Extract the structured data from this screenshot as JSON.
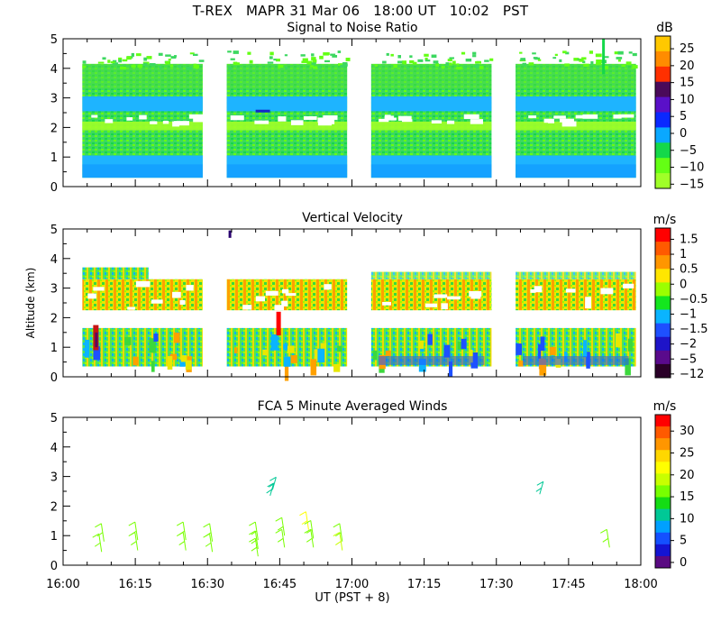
{
  "figure": {
    "title_line": "T-REX   MAPR 31 Mar 06   18:00 UT   10:02   PST",
    "x_label": "UT  (PST + 8)",
    "x_ticks": [
      "16:00",
      "16:15",
      "16:30",
      "16:45",
      "17:00",
      "17:15",
      "17:30",
      "17:45",
      "18:00"
    ]
  },
  "chart_data": [
    {
      "type": "heatmap",
      "title": "Signal to Noise Ratio",
      "ylabel": "",
      "xlim_minutes_utc": [
        960,
        1080
      ],
      "ylim_km": [
        0,
        5
      ],
      "y_ticks": [
        "0",
        "1",
        "2",
        "3",
        "4",
        "5"
      ],
      "colorbar": {
        "unit": "dB",
        "labels": [
          "25",
          "20",
          "15",
          "10",
          "5",
          "0",
          "−5",
          "−10",
          "−15"
        ],
        "colors": [
          "#ffc800",
          "#ff8c00",
          "#ff3000",
          "#4a0a5a",
          "#5a10c8",
          "#0a28ff",
          "#0aa8ff",
          "#14d84a",
          "#64ff14",
          "#a0ff28"
        ]
      },
      "data_blocks_utc": [
        [
          "16:04",
          "16:29"
        ],
        [
          "16:34",
          "16:59"
        ],
        [
          "17:04",
          "17:29"
        ],
        [
          "17:34",
          "17:59"
        ]
      ]
    },
    {
      "type": "heatmap",
      "title": "Vertical Velocity",
      "ylabel": "Altitude (km)",
      "xlim_minutes_utc": [
        960,
        1080
      ],
      "ylim_km": [
        0,
        5
      ],
      "y_ticks": [
        "0",
        "1",
        "2",
        "3",
        "4",
        "5"
      ],
      "colorbar": {
        "unit": "m/s",
        "labels": [
          "1.5",
          "1",
          "0.5",
          "0",
          "−0.5",
          "−1",
          "−1.5",
          "−2",
          "−5",
          "−12"
        ],
        "colors": [
          "#ff0000",
          "#ff5a00",
          "#ff9600",
          "#ffe600",
          "#9bff00",
          "#14e61e",
          "#0ab4ff",
          "#1e50ff",
          "#1e14c8",
          "#5a0a8c",
          "#2a0028"
        ]
      },
      "data_blocks_utc": [
        [
          "16:04",
          "16:29"
        ],
        [
          "16:34",
          "16:59"
        ],
        [
          "17:04",
          "17:29"
        ],
        [
          "17:34",
          "17:59"
        ]
      ]
    },
    {
      "type": "scatter",
      "title": "FCA 5 Minute Averaged Winds",
      "ylabel": "",
      "xlim_minutes_utc": [
        960,
        1080
      ],
      "ylim_km": [
        0,
        5
      ],
      "y_ticks": [
        "0",
        "1",
        "2",
        "3",
        "4",
        "5"
      ],
      "colorbar": {
        "unit": "m/s",
        "labels": [
          "30",
          "25",
          "20",
          "15",
          "10",
          "5",
          "0"
        ],
        "colors": [
          "#ff0000",
          "#ff5a00",
          "#ff9600",
          "#ffd700",
          "#ffff00",
          "#c8ff00",
          "#78ff00",
          "#14dc14",
          "#00c896",
          "#00a0ff",
          "#1450ff",
          "#1414d2",
          "#5a0a82"
        ]
      },
      "wind_barbs": [
        {
          "t": 968,
          "alt_km": 0.45,
          "speed_ms": 14
        },
        {
          "t": 968.5,
          "alt_km": 0.8,
          "speed_ms": 14
        },
        {
          "t": 975.5,
          "alt_km": 0.5,
          "speed_ms": 15
        },
        {
          "t": 975.5,
          "alt_km": 0.85,
          "speed_ms": 15
        },
        {
          "t": 985.5,
          "alt_km": 0.5,
          "speed_ms": 15
        },
        {
          "t": 985.5,
          "alt_km": 0.85,
          "speed_ms": 15
        },
        {
          "t": 991,
          "alt_km": 0.45,
          "speed_ms": 15
        },
        {
          "t": 991,
          "alt_km": 0.8,
          "speed_ms": 15
        },
        {
          "t": 1000.5,
          "alt_km": 0.3,
          "speed_ms": 15
        },
        {
          "t": 1000.5,
          "alt_km": 0.55,
          "speed_ms": 15
        },
        {
          "t": 1000.5,
          "alt_km": 0.85,
          "speed_ms": 16
        },
        {
          "t": 1003,
          "alt_km": 2.35,
          "speed_ms": 10
        },
        {
          "t": 1003.5,
          "alt_km": 2.55,
          "speed_ms": 10
        },
        {
          "t": 1006,
          "alt_km": 0.6,
          "speed_ms": 15
        },
        {
          "t": 1006,
          "alt_km": 1.0,
          "speed_ms": 16
        },
        {
          "t": 1011,
          "alt_km": 1.2,
          "speed_ms": 21
        },
        {
          "t": 1012,
          "alt_km": 0.6,
          "speed_ms": 15
        },
        {
          "t": 1012,
          "alt_km": 0.9,
          "speed_ms": 14
        },
        {
          "t": 1018,
          "alt_km": 0.5,
          "speed_ms": 18
        },
        {
          "t": 1018,
          "alt_km": 0.8,
          "speed_ms": 16
        },
        {
          "t": 1059,
          "alt_km": 2.4,
          "speed_ms": 10
        },
        {
          "t": 1073.5,
          "alt_km": 0.6,
          "speed_ms": 15
        }
      ]
    }
  ]
}
